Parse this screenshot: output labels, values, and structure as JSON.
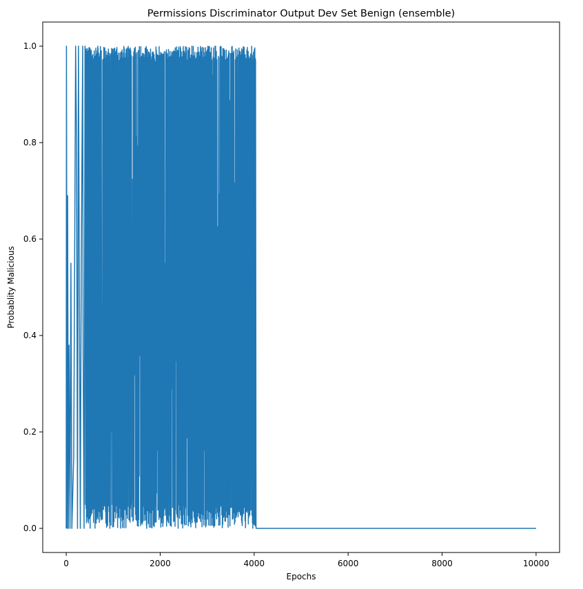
{
  "chart_data": {
    "type": "line",
    "title": "Permissions Discriminator Output Dev Set Benign (ensemble)",
    "xlabel": "Epochs",
    "ylabel": "Probablity Malicious",
    "xlim": [
      -500,
      10500
    ],
    "ylim": [
      -0.05,
      1.05
    ],
    "xticks": [
      0,
      2000,
      4000,
      6000,
      8000,
      10000
    ],
    "yticks": [
      0.0,
      0.2,
      0.4,
      0.6,
      0.8,
      1.0
    ],
    "xtick_labels": [
      "0",
      "2000",
      "4000",
      "6000",
      "8000",
      "10000"
    ],
    "ytick_labels": [
      "0.0",
      "0.2",
      "0.4",
      "0.6",
      "0.8",
      "1.0"
    ],
    "grid": false,
    "series": [
      {
        "color": "#1f77b4",
        "description_segments": [
          {
            "x_range": [
              0,
              4030
            ],
            "behavior": "oscillates between 0.0 and 1.0"
          },
          {
            "x_range": [
              4030,
              10000
            ],
            "behavior": "constant 0.0"
          }
        ],
        "key_points": [
          {
            "x": 0,
            "y": 0.0
          },
          {
            "x": 5,
            "y": 1.0
          },
          {
            "x": 20,
            "y": 0.0
          },
          {
            "x": 30,
            "y": 0.69
          },
          {
            "x": 45,
            "y": 0.0
          },
          {
            "x": 60,
            "y": 0.38
          },
          {
            "x": 80,
            "y": 0.0
          },
          {
            "x": 100,
            "y": 0.55
          },
          {
            "x": 120,
            "y": 0.0
          },
          {
            "x": 160,
            "y": 0.15
          },
          {
            "x": 200,
            "y": 1.0
          },
          {
            "x": 220,
            "y": 0.8
          },
          {
            "x": 240,
            "y": 0.0
          },
          {
            "x": 260,
            "y": 1.0
          },
          {
            "x": 300,
            "y": 0.0
          },
          {
            "x": 320,
            "y": 0.55
          },
          {
            "x": 350,
            "y": 1.0
          },
          {
            "x": 360,
            "y": 0.36
          },
          {
            "x": 380,
            "y": 0.0
          },
          {
            "x": 400,
            "y": 1.0
          },
          {
            "x": 4030,
            "y": 0.97
          },
          {
            "x": 4040,
            "y": 0.0
          },
          {
            "x": 10000,
            "y": 0.0
          }
        ]
      }
    ]
  }
}
